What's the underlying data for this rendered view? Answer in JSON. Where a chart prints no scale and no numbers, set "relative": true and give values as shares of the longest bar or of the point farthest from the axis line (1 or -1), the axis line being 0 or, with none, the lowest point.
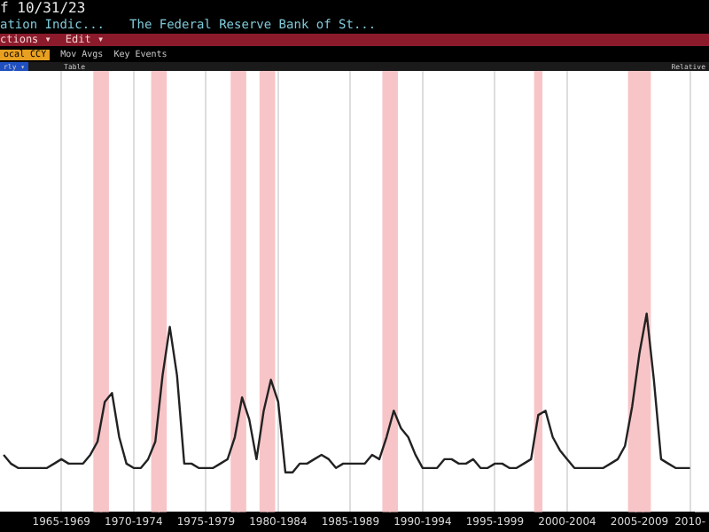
{
  "chart_data": {
    "type": "line",
    "title": "ation Indic...",
    "subtitle": "The Federal Reserve Bank of St...",
    "annotations": [
      "f 10/31/23",
      "ctions ▾",
      "Edit ▾",
      "ocal CCY",
      "Mov Avgs",
      "Key Events",
      "rly ▾",
      "Table",
      "Relative"
    ],
    "relative": true,
    "grid": "x",
    "legend": false,
    "marker": "none",
    "line_style": "solid",
    "categories": [
      null,
      null,
      null,
      null,
      null,
      null,
      null,
      null,
      "1965-1969",
      null,
      null,
      null,
      null,
      null,
      null,
      null,
      null,
      null,
      "1970-1974",
      null,
      null,
      null,
      null,
      null,
      null,
      null,
      null,
      null,
      "1975-1979",
      null,
      null,
      null,
      null,
      null,
      null,
      null,
      null,
      null,
      "1980-1984",
      null,
      null,
      null,
      null,
      null,
      null,
      null,
      null,
      null,
      "1985-1989",
      null,
      null,
      null,
      null,
      null,
      null,
      null,
      null,
      null,
      "1990-1994",
      null,
      null,
      null,
      null,
      null,
      null,
      null,
      null,
      null,
      "1995-1999",
      null,
      null,
      null,
      null,
      null,
      null,
      null,
      null,
      null,
      "2000-2004",
      null,
      null,
      null,
      null,
      null,
      null,
      null,
      null,
      null,
      "2005-2009",
      null,
      null,
      null,
      null,
      null,
      null,
      "2010-"
    ],
    "series": [
      {
        "type": "bar",
        "color": "#f7c5c7",
        "values": [
          null,
          null,
          null,
          null,
          null,
          null,
          null,
          null,
          null,
          null,
          null,
          null,
          null,
          1,
          1,
          null,
          null,
          null,
          null,
          null,
          null,
          1,
          1,
          null,
          null,
          null,
          null,
          null,
          null,
          null,
          null,
          null,
          1,
          1,
          null,
          null,
          1,
          1,
          null,
          null,
          null,
          null,
          null,
          null,
          null,
          null,
          null,
          null,
          null,
          null,
          null,
          null,
          null,
          1,
          1,
          null,
          null,
          null,
          null,
          null,
          null,
          null,
          null,
          null,
          null,
          null,
          null,
          null,
          null,
          null,
          null,
          null,
          null,
          null,
          1,
          null,
          null,
          null,
          null,
          null,
          null,
          null,
          null,
          null,
          null,
          null,
          null,
          1,
          1,
          1,
          null,
          null,
          null,
          null,
          null,
          null
        ]
      },
      {
        "color": "#222222",
        "values": [
          0.13,
          0.11,
          0.1,
          0.1,
          0.1,
          0.1,
          0.1,
          0.11,
          0.12,
          0.11,
          0.11,
          0.11,
          0.13,
          0.16,
          0.25,
          0.27,
          0.17,
          0.11,
          0.1,
          0.1,
          0.12,
          0.16,
          0.31,
          0.42,
          0.31,
          0.11,
          0.11,
          0.1,
          0.1,
          0.1,
          0.11,
          0.12,
          0.17,
          0.26,
          0.21,
          0.12,
          0.23,
          0.3,
          0.25,
          0.09,
          0.09,
          0.11,
          0.11,
          0.12,
          0.13,
          0.12,
          0.1,
          0.11,
          0.11,
          0.11,
          0.11,
          0.13,
          0.12,
          0.17,
          0.23,
          0.19,
          0.17,
          0.13,
          0.1,
          0.1,
          0.1,
          0.12,
          0.12,
          0.11,
          0.11,
          0.12,
          0.1,
          0.1,
          0.11,
          0.11,
          0.1,
          0.1,
          0.11,
          0.12,
          0.22,
          0.23,
          0.17,
          0.14,
          0.12,
          0.1,
          0.1,
          0.1,
          0.1,
          0.1,
          0.11,
          0.12,
          0.15,
          0.24,
          0.36,
          0.45,
          0.3,
          0.12,
          0.11,
          0.1,
          0.1,
          0.1
        ]
      }
    ]
  }
}
